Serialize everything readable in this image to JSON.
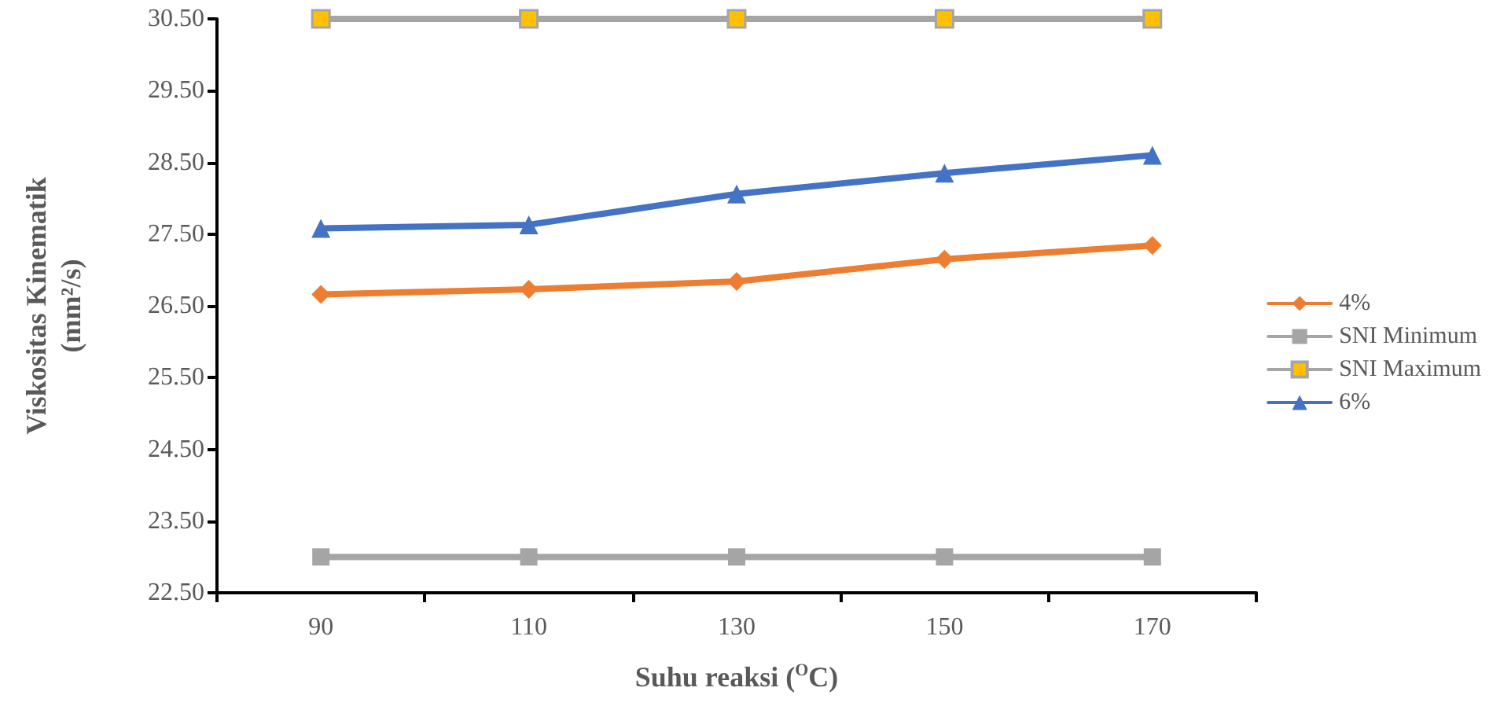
{
  "chart_data": {
    "type": "line",
    "xlabel": "Suhu reaksi ($^{O}$C)",
    "ylabel": "Viskositas Kinematik (mm²/s)",
    "categories": [
      "90",
      "110",
      "130",
      "150",
      "170"
    ],
    "series": [
      {
        "name": "4%",
        "color": "#ed7d31",
        "marker": "diamond",
        "values": [
          26.66,
          26.73,
          26.84,
          27.15,
          27.34
        ]
      },
      {
        "name": "SNI Minimum",
        "color": "#a5a5a5",
        "marker": "square",
        "values": [
          23.0,
          23.0,
          23.0,
          23.0,
          23.0
        ]
      },
      {
        "name": "SNI Maximum",
        "color": "#a5a5a5",
        "marker": "square",
        "colors": [
          "#ffc000",
          "#ffc000",
          "#ffc000",
          "#ffc000",
          "#ffc000"
        ],
        "values": [
          30.5,
          30.5,
          30.5,
          30.5,
          30.5
        ]
      },
      {
        "name": "6%",
        "color": "#4472c4",
        "marker": "triangle",
        "values": [
          27.58,
          27.63,
          28.06,
          28.35,
          28.6
        ]
      }
    ],
    "ylim": [
      22.5,
      30.5
    ],
    "yticks": [
      {
        "value": 22.5,
        "label": "22.50"
      },
      {
        "value": 23.5,
        "label": "23.50"
      },
      {
        "value": 24.5,
        "label": "24.50"
      },
      {
        "value": 25.5,
        "label": "25.50"
      },
      {
        "value": 26.5,
        "label": "26.50"
      },
      {
        "value": 27.5,
        "label": "27.50"
      },
      {
        "value": 28.5,
        "label": "28.50"
      },
      {
        "value": 29.5,
        "label": "29.50"
      },
      {
        "value": 30.5,
        "label": "30.50"
      }
    ],
    "grid": false,
    "legend": "right",
    "line_style": "solid"
  }
}
